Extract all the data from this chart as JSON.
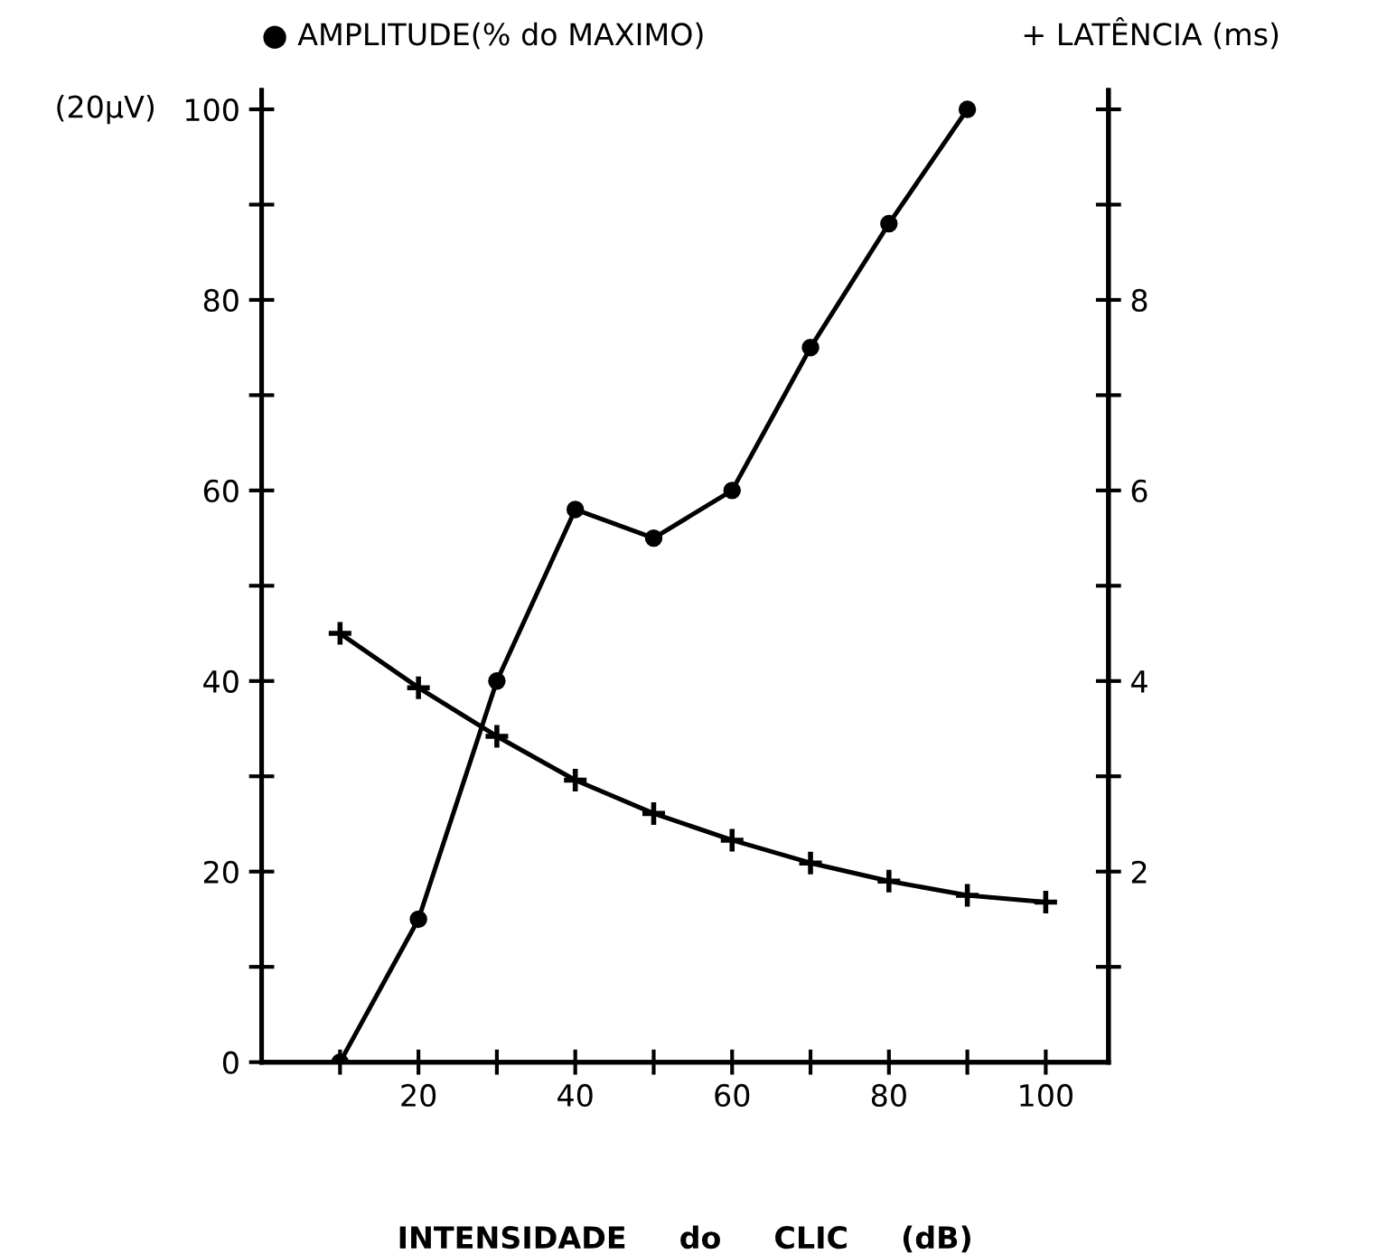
{
  "chart_data": {
    "type": "line",
    "xlabel": "INTENSIDADE     do     CLIC     (dB)",
    "ylabel": "● AMPLITUDE(% do MAXIMO)",
    "y2label": "+ LATÊNCIA (ms)",
    "annotations": [
      "(20μV)"
    ],
    "series": [
      {
        "color": "#000000",
        "marker": "circle",
        "x": [
          10,
          20,
          30,
          40,
          50,
          60,
          70,
          80,
          90
        ],
        "values": [
          0,
          15,
          40,
          58,
          55,
          60,
          75,
          88,
          100
        ]
      },
      {
        "color": "#000000",
        "marker": "cross",
        "axis": "y2",
        "x": [
          10,
          20,
          30,
          40,
          50,
          60,
          70,
          80,
          90,
          100
        ],
        "values": [
          4.5,
          3.93,
          3.42,
          2.96,
          2.61,
          2.33,
          2.09,
          1.9,
          1.75,
          1.68
        ]
      }
    ],
    "xlim": [
      0,
      108
    ],
    "xticks": [
      {
        "value": 10,
        "label": null
      },
      20,
      {
        "value": 30,
        "label": null
      },
      40,
      {
        "value": 50,
        "label": null
      },
      60,
      {
        "value": 70,
        "label": null
      },
      80,
      {
        "value": 90,
        "label": null
      },
      100
    ],
    "ylim": [
      0,
      102
    ],
    "yticks": [
      0,
      {
        "value": 10,
        "label": null
      },
      20,
      {
        "value": 30,
        "label": null
      },
      40,
      {
        "value": 50,
        "label": null
      },
      60,
      {
        "value": 70,
        "label": null
      },
      80,
      {
        "value": 90,
        "label": null
      },
      100
    ],
    "y2lim": [
      0,
      10.2
    ],
    "y2ticks": [
      {
        "value": 1,
        "label": null
      },
      2,
      {
        "value": 3,
        "label": null
      },
      4,
      {
        "value": 5,
        "label": null
      },
      6,
      {
        "value": 7,
        "label": null
      },
      8,
      {
        "value": 9,
        "label": null
      },
      {
        "value": 10,
        "label": null
      }
    ],
    "grid": false,
    "legend": false,
    "line_style": "solid"
  }
}
